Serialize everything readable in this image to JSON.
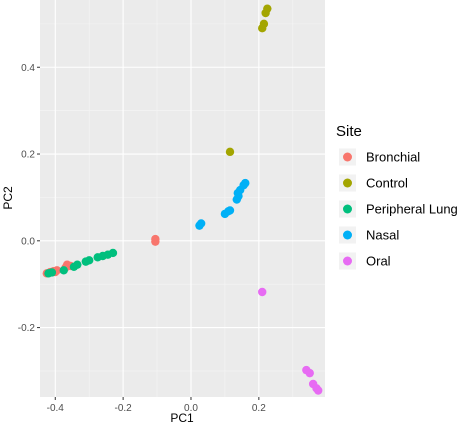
{
  "chart_data": {
    "type": "scatter",
    "title": "",
    "xlabel": "PC1",
    "ylabel": "PC2",
    "xlim": [
      -0.445,
      0.395
    ],
    "ylim": [
      -0.36,
      0.555
    ],
    "x_ticks": [
      -0.4,
      -0.2,
      0.0,
      0.2
    ],
    "x_tick_labels": [
      "-0.4",
      "-0.2",
      "0.0",
      "0.2"
    ],
    "y_ticks": [
      -0.2,
      0.0,
      0.2,
      0.4
    ],
    "y_tick_labels": [
      "-0.2",
      "0.0",
      "0.2",
      "0.4"
    ],
    "grid": true,
    "background": "#ebebeb",
    "legend": {
      "title": "Site",
      "position": "right"
    },
    "series": [
      {
        "name": "Bronchial",
        "color": "#F8766D",
        "points": [
          [
            -0.425,
            -0.075
          ],
          [
            -0.415,
            -0.072
          ],
          [
            -0.405,
            -0.07
          ],
          [
            -0.4,
            -0.072
          ],
          [
            -0.395,
            -0.068
          ],
          [
            -0.37,
            -0.062
          ],
          [
            -0.365,
            -0.055
          ],
          [
            -0.355,
            -0.058
          ],
          [
            -0.105,
            -0.002
          ],
          [
            -0.105,
            0.004
          ]
        ]
      },
      {
        "name": "Control",
        "color": "#A3A500",
        "points": [
          [
            0.21,
            0.49
          ],
          [
            0.215,
            0.5
          ],
          [
            0.22,
            0.525
          ],
          [
            0.225,
            0.535
          ],
          [
            0.115,
            0.205
          ]
        ]
      },
      {
        "name": "Peripheral Lung",
        "color": "#00BF7D",
        "points": [
          [
            -0.42,
            -0.075
          ],
          [
            -0.41,
            -0.073
          ],
          [
            -0.375,
            -0.068
          ],
          [
            -0.345,
            -0.06
          ],
          [
            -0.335,
            -0.055
          ],
          [
            -0.31,
            -0.048
          ],
          [
            -0.3,
            -0.045
          ],
          [
            -0.275,
            -0.038
          ],
          [
            -0.26,
            -0.035
          ],
          [
            -0.245,
            -0.032
          ],
          [
            -0.23,
            -0.028
          ]
        ]
      },
      {
        "name": "Nasal",
        "color": "#00B0F6",
        "points": [
          [
            0.025,
            0.035
          ],
          [
            0.03,
            0.04
          ],
          [
            0.1,
            0.062
          ],
          [
            0.11,
            0.068
          ],
          [
            0.115,
            0.07
          ],
          [
            0.135,
            0.095
          ],
          [
            0.14,
            0.103
          ],
          [
            0.138,
            0.11
          ],
          [
            0.145,
            0.117
          ],
          [
            0.155,
            0.128
          ],
          [
            0.16,
            0.133
          ]
        ]
      },
      {
        "name": "Oral",
        "color": "#E76BF3",
        "points": [
          [
            0.21,
            -0.118
          ],
          [
            0.34,
            -0.298
          ],
          [
            0.35,
            -0.305
          ],
          [
            0.36,
            -0.33
          ],
          [
            0.37,
            -0.34
          ],
          [
            0.375,
            -0.345
          ]
        ]
      }
    ]
  }
}
